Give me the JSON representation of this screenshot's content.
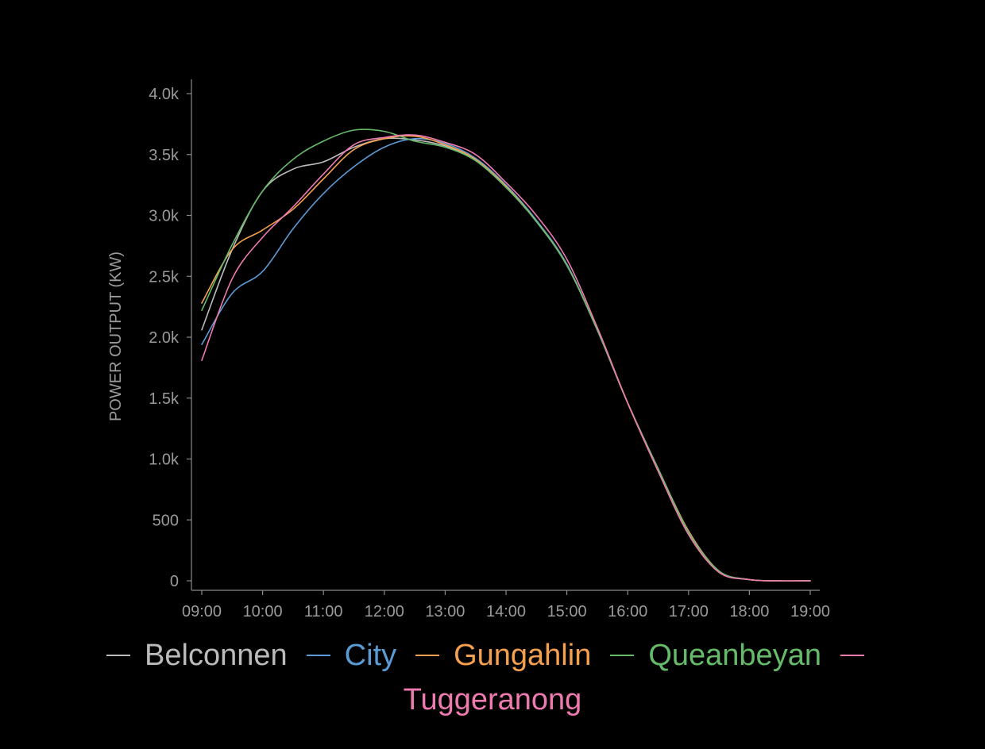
{
  "chart_data": {
    "type": "line",
    "ylabel": "POWER OUTPUT (KW)",
    "xlabel": "",
    "x_ticks": [
      "09:00",
      "10:00",
      "11:00",
      "12:00",
      "13:00",
      "14:00",
      "15:00",
      "16:00",
      "17:00",
      "18:00",
      "19:00"
    ],
    "y_ticks": [
      "0",
      "500",
      "1.0k",
      "1.5k",
      "2.0k",
      "2.5k",
      "3.0k",
      "3.5k",
      "4.0k"
    ],
    "ylim": [
      0,
      4000
    ],
    "x": [
      "09:00",
      "09:30",
      "10:00",
      "10:30",
      "11:00",
      "11:30",
      "12:00",
      "12:30",
      "13:00",
      "13:30",
      "14:00",
      "14:30",
      "15:00",
      "15:30",
      "16:00",
      "16:30",
      "17:00",
      "17:30",
      "18:00",
      "18:30",
      "19:00"
    ],
    "series": [
      {
        "name": "Belconnen",
        "color": "#bbbbbb",
        "values": [
          2060,
          2720,
          3200,
          3380,
          3440,
          3560,
          3630,
          3620,
          3570,
          3450,
          3230,
          2950,
          2590,
          2060,
          1460,
          920,
          400,
          80,
          10,
          0,
          0
        ]
      },
      {
        "name": "City",
        "color": "#5b9bd5",
        "values": [
          1940,
          2360,
          2540,
          2890,
          3180,
          3400,
          3560,
          3630,
          3590,
          3470,
          3250,
          2960,
          2600,
          2060,
          1460,
          920,
          400,
          80,
          10,
          0,
          0
        ]
      },
      {
        "name": "Gungahlin",
        "color": "#f5a04f",
        "values": [
          2280,
          2720,
          2880,
          3050,
          3300,
          3540,
          3630,
          3650,
          3580,
          3460,
          3240,
          2950,
          2590,
          2060,
          1460,
          920,
          410,
          80,
          10,
          0,
          0
        ]
      },
      {
        "name": "Queanbeyan",
        "color": "#66bb6a",
        "values": [
          2220,
          2760,
          3200,
          3460,
          3610,
          3700,
          3690,
          3610,
          3560,
          3450,
          3230,
          2950,
          2590,
          2060,
          1460,
          920,
          400,
          80,
          10,
          0,
          0
        ]
      },
      {
        "name": "Tuggeranong",
        "color": "#ee7ab0",
        "values": [
          1810,
          2480,
          2820,
          3070,
          3340,
          3580,
          3640,
          3660,
          3600,
          3500,
          3270,
          3000,
          2640,
          2080,
          1460,
          900,
          380,
          70,
          10,
          0,
          0
        ]
      }
    ],
    "grid": false,
    "legend_position": "bottom"
  }
}
